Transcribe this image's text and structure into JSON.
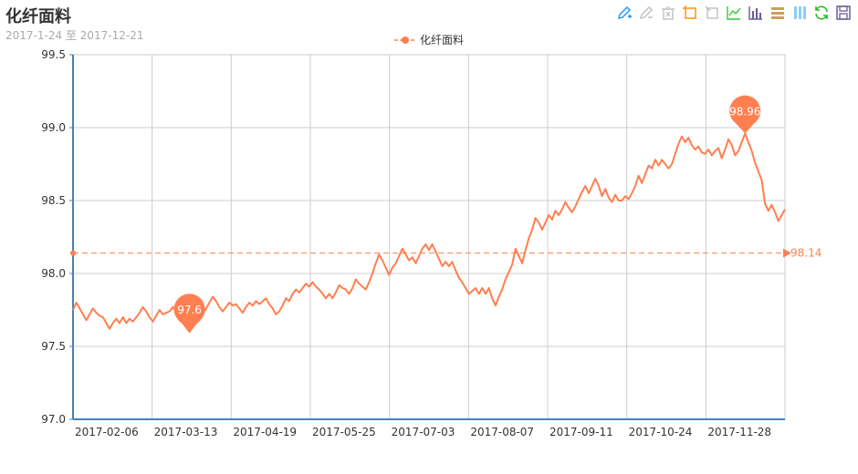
{
  "header": {
    "title": "化纤面料",
    "subtitle": "2017-1-24 至 2017-12-21"
  },
  "toolbox": {
    "icons": [
      "mark-icon",
      "mark-undo-icon",
      "mark-clear-icon",
      "data-zoom-icon",
      "data-zoom-reset-icon",
      "line-chart-icon",
      "bar-chart-icon",
      "stack-icon",
      "tiled-icon",
      "restore-icon",
      "save-image-icon"
    ],
    "colors": [
      "#1e90ff",
      "#c0c0c0",
      "#c0c0c0",
      "#ff8c00",
      "#c0c0c0",
      "#32cd32",
      "#6b5b95",
      "#c8a060",
      "#87cefa",
      "#22bb22",
      "#6b5b95"
    ]
  },
  "legend": {
    "label": "化纤面料",
    "color": "#ff7f50"
  },
  "chart_data": {
    "type": "line",
    "series": [
      {
        "name": "化纤面料",
        "color": "#ff7f50",
        "values": [
          97.75,
          97.8,
          97.76,
          97.72,
          97.68,
          97.72,
          97.76,
          97.73,
          97.71,
          97.7,
          97.66,
          97.62,
          97.66,
          97.69,
          97.66,
          97.7,
          97.66,
          97.69,
          97.67,
          97.7,
          97.73,
          97.77,
          97.74,
          97.7,
          97.67,
          97.71,
          97.75,
          97.72,
          97.73,
          97.74,
          97.77,
          97.74,
          97.68,
          97.66,
          97.63,
          97.6,
          97.63,
          97.66,
          97.68,
          97.72,
          97.76,
          97.8,
          97.84,
          97.81,
          97.77,
          97.74,
          97.77,
          97.8,
          97.78,
          97.79,
          97.76,
          97.73,
          97.77,
          97.8,
          97.78,
          97.81,
          97.79,
          97.81,
          97.83,
          97.79,
          97.76,
          97.72,
          97.74,
          97.78,
          97.83,
          97.81,
          97.86,
          97.89,
          97.87,
          97.9,
          97.93,
          97.91,
          97.94,
          97.91,
          97.89,
          97.86,
          97.83,
          97.86,
          97.83,
          97.87,
          97.92,
          97.9,
          97.89,
          97.86,
          97.9,
          97.96,
          97.93,
          97.91,
          97.89,
          97.94,
          98.0,
          98.07,
          98.13,
          98.09,
          98.04,
          97.99,
          98.04,
          98.07,
          98.12,
          98.17,
          98.13,
          98.09,
          98.11,
          98.07,
          98.12,
          98.17,
          98.2,
          98.16,
          98.2,
          98.15,
          98.1,
          98.05,
          98.08,
          98.05,
          98.08,
          98.02,
          97.97,
          97.94,
          97.9,
          97.86,
          97.88,
          97.9,
          97.86,
          97.9,
          97.86,
          97.9,
          97.83,
          97.78,
          97.84,
          97.89,
          97.96,
          98.01,
          98.06,
          98.17,
          98.12,
          98.07,
          98.16,
          98.24,
          98.3,
          98.38,
          98.35,
          98.3,
          98.35,
          98.4,
          98.37,
          98.43,
          98.4,
          98.44,
          98.49,
          98.45,
          98.42,
          98.46,
          98.51,
          98.56,
          98.6,
          98.55,
          98.6,
          98.65,
          98.6,
          98.53,
          98.58,
          98.52,
          98.49,
          98.54,
          98.5,
          98.5,
          98.53,
          98.51,
          98.55,
          98.6,
          98.67,
          98.62,
          98.68,
          98.74,
          98.72,
          98.78,
          98.74,
          98.78,
          98.75,
          98.72,
          98.75,
          98.82,
          98.89,
          98.94,
          98.9,
          98.93,
          98.88,
          98.85,
          98.87,
          98.83,
          98.82,
          98.85,
          98.81,
          98.84,
          98.86,
          98.79,
          98.85,
          98.92,
          98.88,
          98.81,
          98.84,
          98.9,
          98.96,
          98.9,
          98.84,
          98.76,
          98.7,
          98.64,
          98.48,
          98.43,
          98.47,
          98.42,
          98.36,
          98.4,
          98.44
        ],
        "min_point": {
          "value": 97.6
        },
        "max_point": {
          "value": 98.96
        },
        "average_line": {
          "value": 98.14
        }
      }
    ],
    "x_ticks": [
      "2017-02-06",
      "2017-03-13",
      "2017-04-19",
      "2017-05-25",
      "2017-07-03",
      "2017-08-07",
      "2017-09-11",
      "2017-10-24",
      "2017-11-28"
    ],
    "y_ticks": [
      "97.0",
      "97.5",
      "98.0",
      "98.5",
      "99.0",
      "99.5"
    ],
    "ylim": [
      97.0,
      99.5
    ],
    "grid": true,
    "legend_position": "top-center"
  }
}
